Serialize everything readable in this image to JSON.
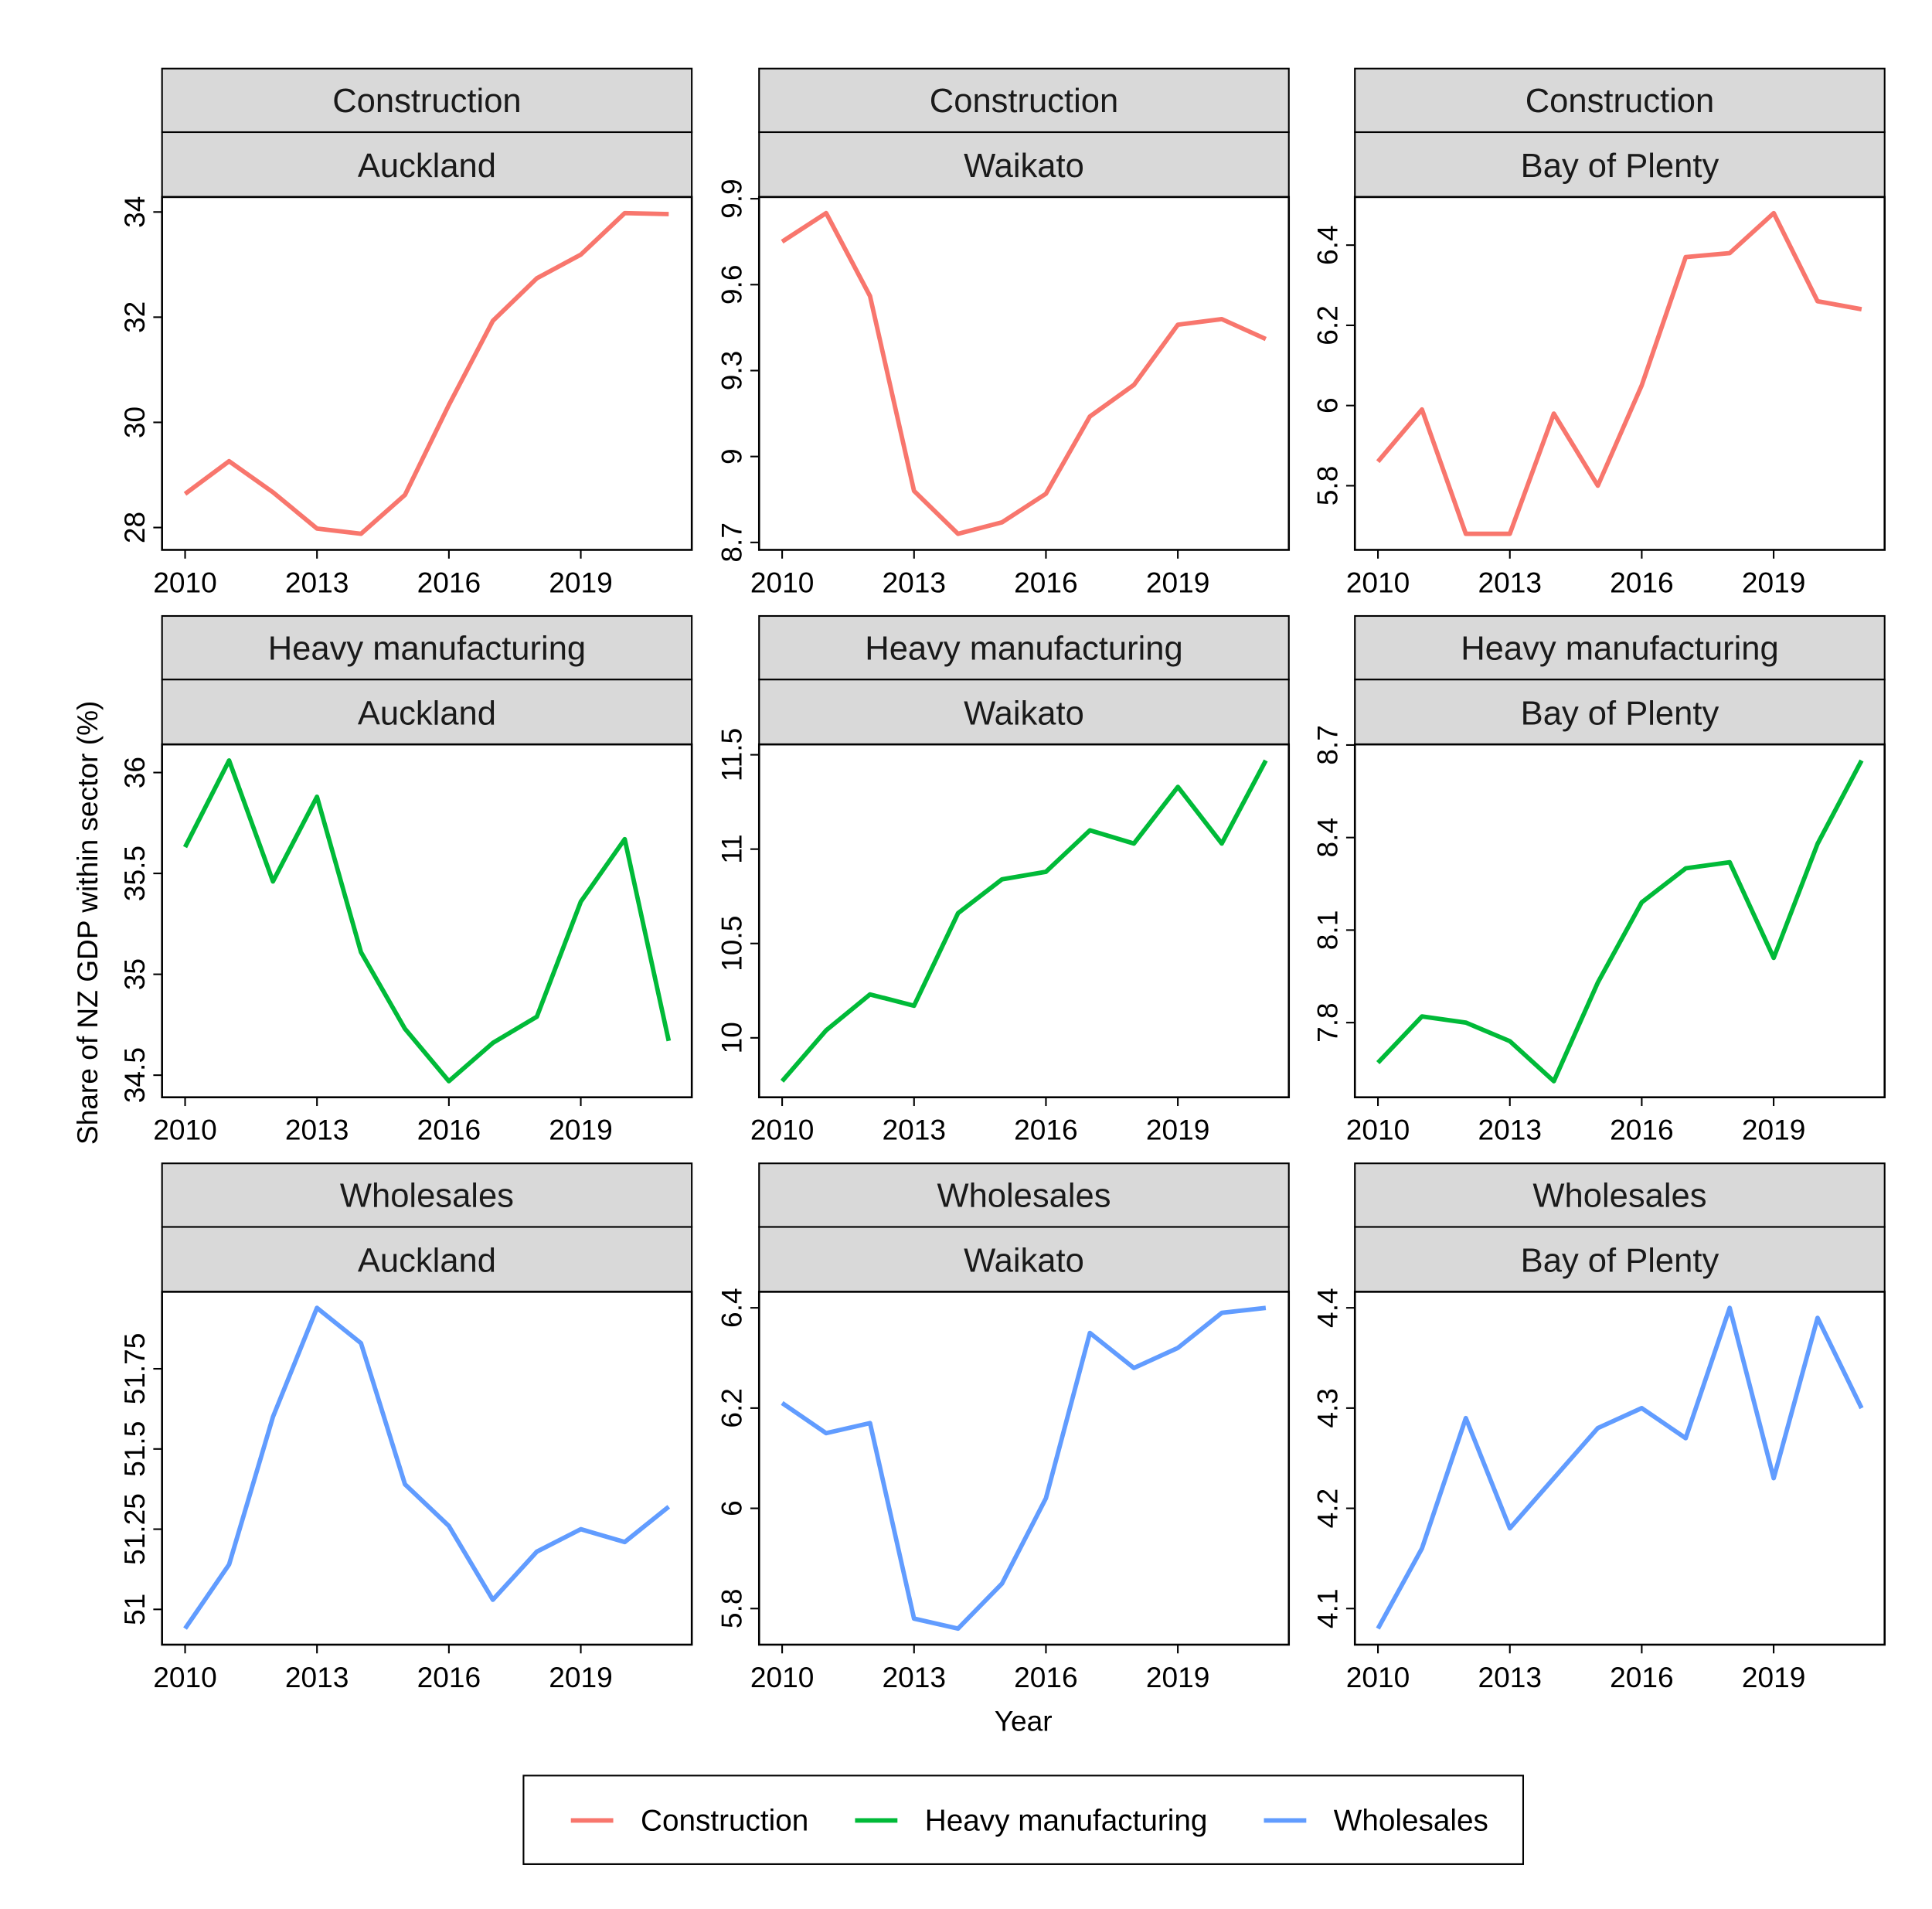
{
  "chart_data": {
    "type": "line",
    "ylabel": "Share of NZ GDP within sector (%)",
    "xlabel": "Year",
    "x": [
      2010,
      2011,
      2012,
      2013,
      2014,
      2015,
      2016,
      2017,
      2018,
      2019,
      2020,
      2021
    ],
    "x_ticks": [
      2010,
      2013,
      2016,
      2019
    ],
    "x_tick_labels": [
      "2010",
      "2013",
      "2016",
      "2019"
    ],
    "legend": {
      "placement": "bottom",
      "entries": [
        {
          "label": "Construction",
          "color": "#F8766D"
        },
        {
          "label": "Heavy manufacturing",
          "color": "#00BA38"
        },
        {
          "label": "Wholesales",
          "color": "#619CFF"
        }
      ]
    },
    "panels": [
      {
        "sector": "Construction",
        "region": "Auckland",
        "color": "#F8766D",
        "y_ticks": [
          28,
          30,
          32,
          34
        ],
        "y_tick_labels": [
          "28",
          "30",
          "32",
          "34"
        ],
        "values": [
          28.64,
          29.26,
          28.67,
          27.98,
          27.88,
          28.62,
          30.33,
          31.93,
          32.74,
          33.19,
          33.98,
          33.96
        ]
      },
      {
        "sector": "Construction",
        "region": "Waikato",
        "color": "#F8766D",
        "y_ticks": [
          8.7,
          9,
          9.3,
          9.6,
          9.9
        ],
        "y_tick_labels": [
          "8.7",
          "9",
          "9.3",
          "9.6",
          "9.9"
        ],
        "values": [
          9.75,
          9.85,
          9.56,
          8.88,
          8.73,
          8.77,
          8.87,
          9.14,
          9.25,
          9.46,
          9.48,
          9.41
        ]
      },
      {
        "sector": "Construction",
        "region": "Bay of Plenty",
        "color": "#F8766D",
        "y_ticks": [
          5.8,
          6,
          6.2,
          6.4
        ],
        "y_tick_labels": [
          "5.8",
          "6",
          "6.2",
          "6.4"
        ],
        "values": [
          5.86,
          5.99,
          5.68,
          5.68,
          5.98,
          5.8,
          6.05,
          6.37,
          6.38,
          6.48,
          6.26,
          6.24
        ]
      },
      {
        "sector": "Heavy manufacturing",
        "region": "Auckland",
        "color": "#00BA38",
        "y_ticks": [
          34.5,
          35,
          35.5,
          36
        ],
        "y_tick_labels": [
          "34.5",
          "35",
          "35.5",
          "36"
        ],
        "values": [
          35.63,
          36.06,
          35.46,
          35.88,
          35.11,
          34.73,
          34.47,
          34.66,
          34.79,
          35.36,
          35.67,
          34.67
        ]
      },
      {
        "sector": "Heavy manufacturing",
        "region": "Waikato",
        "color": "#00BA38",
        "y_ticks": [
          10,
          10.5,
          11,
          11.5
        ],
        "y_tick_labels": [
          "10",
          "10.5",
          "11",
          "11.5"
        ],
        "values": [
          9.77,
          10.04,
          10.23,
          10.17,
          10.66,
          10.84,
          10.88,
          11.1,
          11.03,
          11.33,
          11.03,
          11.47
        ]
      },
      {
        "sector": "Heavy manufacturing",
        "region": "Bay of Plenty",
        "color": "#00BA38",
        "y_ticks": [
          7.8,
          8.1,
          8.4,
          8.7
        ],
        "y_tick_labels": [
          "7.8",
          "8.1",
          "8.4",
          "8.7"
        ],
        "values": [
          7.67,
          7.82,
          7.8,
          7.74,
          7.61,
          7.93,
          8.19,
          8.3,
          8.32,
          8.01,
          8.38,
          8.65
        ]
      },
      {
        "sector": "Wholesales",
        "region": "Auckland",
        "color": "#619CFF",
        "y_ticks": [
          51,
          51.25,
          51.5,
          51.75
        ],
        "y_tick_labels": [
          "51",
          "51.25",
          "51.5",
          "51.75"
        ],
        "values": [
          50.94,
          51.14,
          51.6,
          51.94,
          51.83,
          51.39,
          51.26,
          51.03,
          51.18,
          51.25,
          51.21,
          51.32
        ]
      },
      {
        "sector": "Wholesales",
        "region": "Waikato",
        "color": "#619CFF",
        "y_ticks": [
          5.8,
          6,
          6.2,
          6.4
        ],
        "y_tick_labels": [
          "5.8",
          "6",
          "6.2",
          "6.4"
        ],
        "values": [
          6.21,
          6.15,
          6.17,
          5.78,
          5.76,
          5.85,
          6.02,
          6.35,
          6.28,
          6.32,
          6.39,
          6.4
        ]
      },
      {
        "sector": "Wholesales",
        "region": "Bay of Plenty",
        "color": "#619CFF",
        "y_ticks": [
          4.1,
          4.2,
          4.3,
          4.4
        ],
        "y_tick_labels": [
          "4.1",
          "4.2",
          "4.3",
          "4.4"
        ],
        "values": [
          4.08,
          4.16,
          4.29,
          4.18,
          4.23,
          4.28,
          4.3,
          4.27,
          4.4,
          4.23,
          4.39,
          4.3
        ]
      }
    ]
  }
}
